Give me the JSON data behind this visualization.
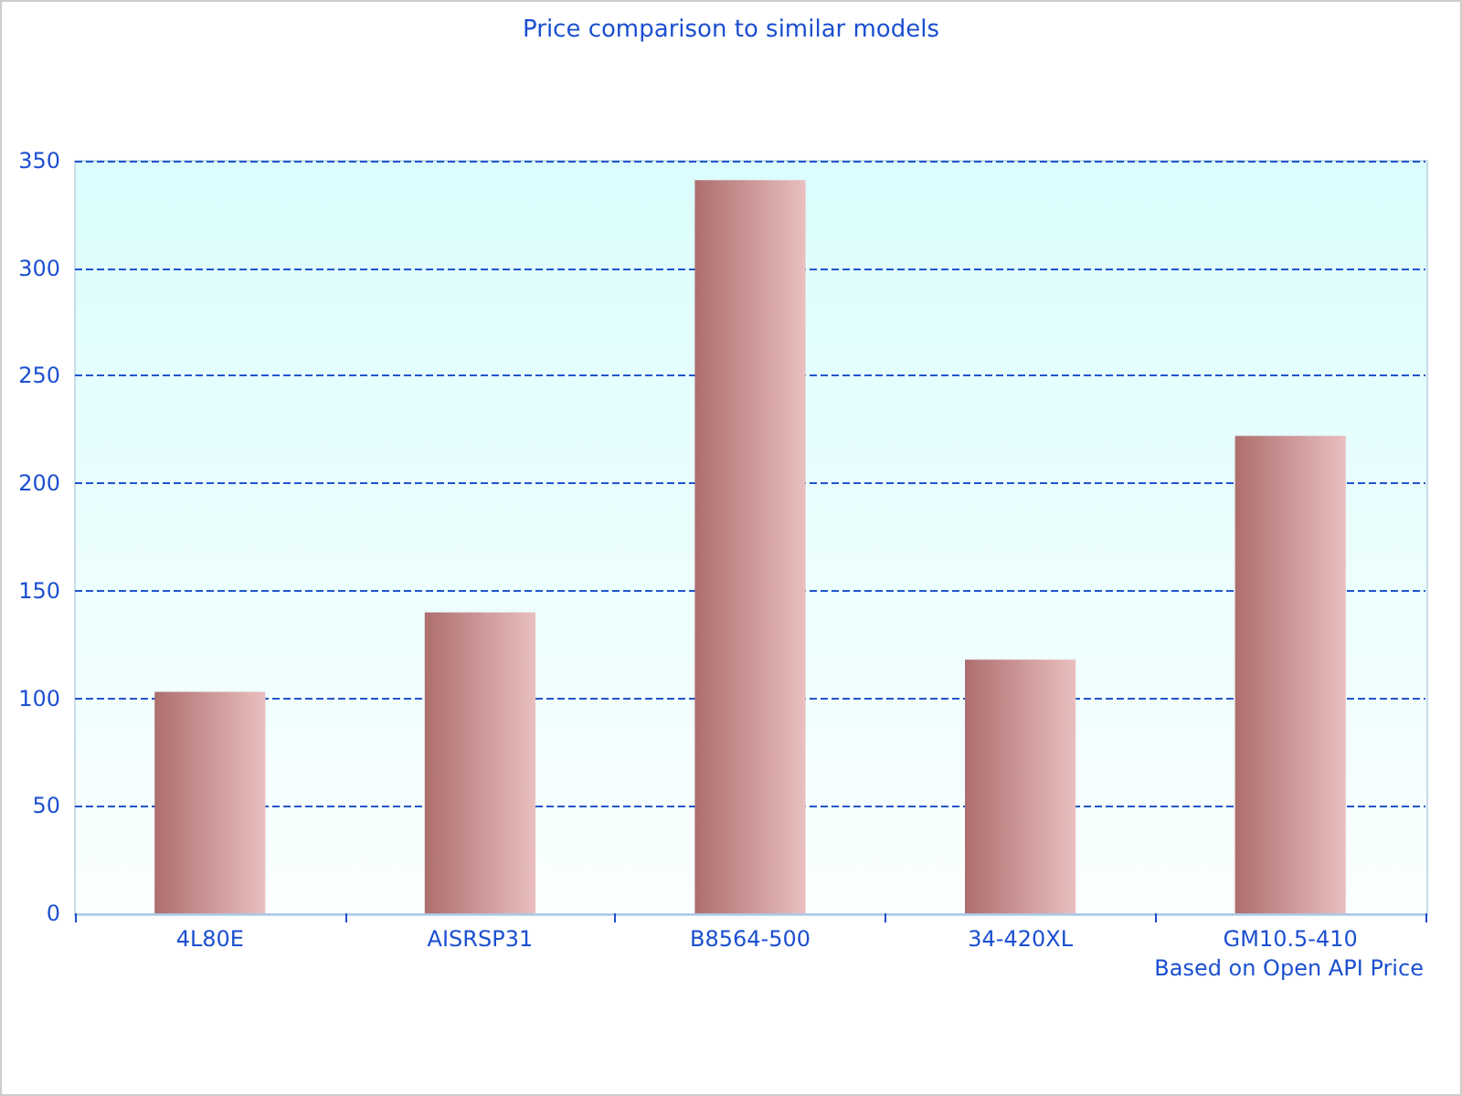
{
  "chart_data": {
    "type": "bar",
    "title": "Price comparison to similar models",
    "categories": [
      "4L80E",
      "AISRSP31",
      "B8564-500",
      "34-420XL",
      "GM10.5-410"
    ],
    "values": [
      103,
      140,
      341,
      118,
      222
    ],
    "color": "#d98a8a",
    "ylim": [
      0,
      350
    ],
    "yticks": [
      0,
      50,
      100,
      150,
      200,
      250,
      300,
      350
    ],
    "grid": "y",
    "annotations": [
      "Based on Open API Price"
    ]
  }
}
